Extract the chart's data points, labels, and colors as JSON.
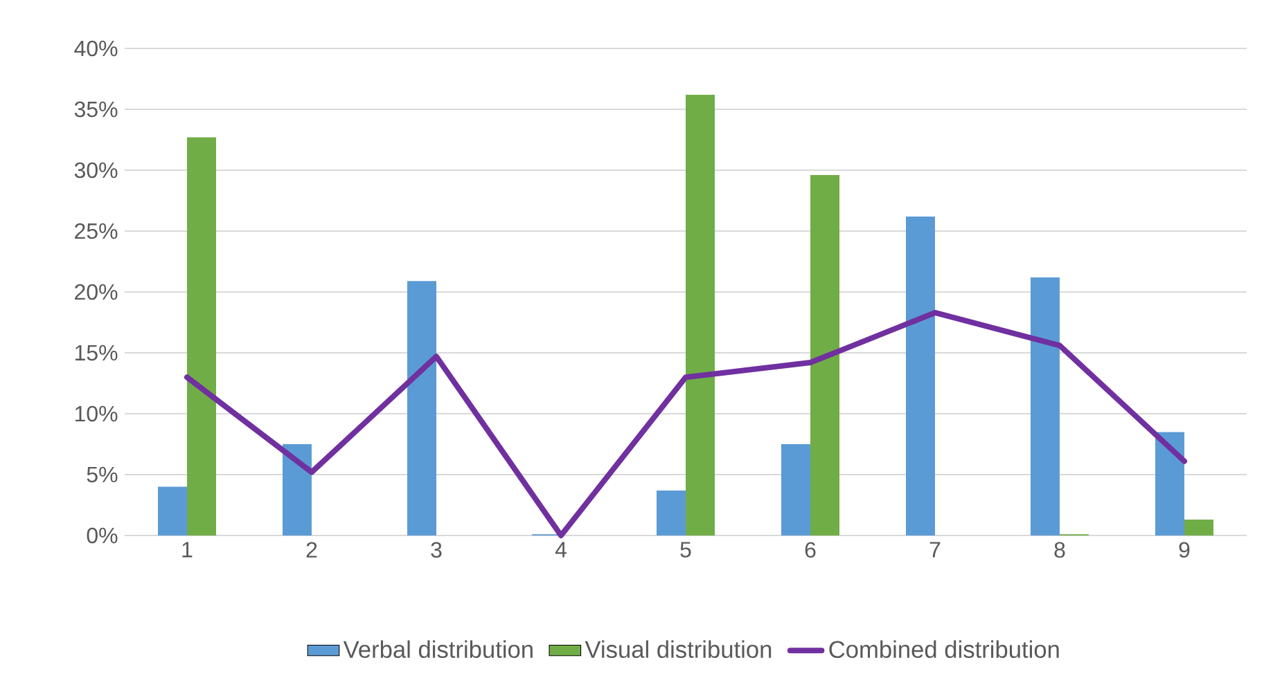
{
  "chart_data": {
    "type": "bar",
    "categories": [
      "1",
      "2",
      "3",
      "4",
      "5",
      "6",
      "7",
      "8",
      "9"
    ],
    "series": [
      {
        "name": "Verbal distribution",
        "color": "#5b9bd5",
        "values": [
          4.0,
          7.5,
          20.9,
          0.1,
          3.7,
          7.5,
          26.2,
          21.2,
          8.5
        ]
      },
      {
        "name": "Visual distribution",
        "color": "#70ad47",
        "values": [
          32.7,
          0,
          0,
          0,
          36.2,
          29.6,
          0,
          0.1,
          1.3
        ]
      },
      {
        "name": "Combined distribution",
        "type": "line",
        "color": "#7030a0",
        "values": [
          13.0,
          5.2,
          14.7,
          0,
          13.0,
          14.2,
          18.3,
          15.6,
          6.1
        ]
      }
    ],
    "ylim": [
      0,
      40
    ],
    "yticks": [
      {
        "value": 0,
        "label": "0%"
      },
      {
        "value": 5,
        "label": "5%"
      },
      {
        "value": 10,
        "label": "10%"
      },
      {
        "value": 15,
        "label": "15%"
      },
      {
        "value": 20,
        "label": "20%"
      },
      {
        "value": 25,
        "label": "25%"
      },
      {
        "value": 30,
        "label": "30%"
      },
      {
        "value": 35,
        "label": "35%"
      },
      {
        "value": 40,
        "label": "40%"
      }
    ],
    "grid": "y",
    "legend": "bottom",
    "line_style": "solid"
  }
}
